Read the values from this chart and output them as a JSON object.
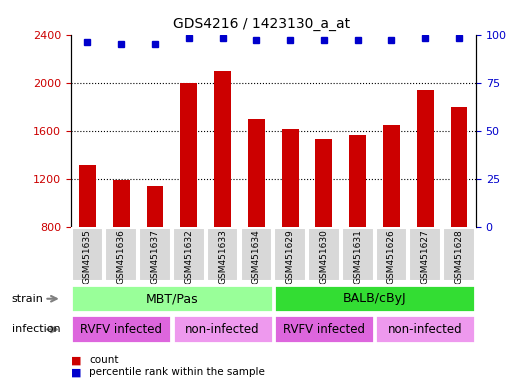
{
  "title": "GDS4216 / 1423130_a_at",
  "samples": [
    "GSM451635",
    "GSM451636",
    "GSM451637",
    "GSM451632",
    "GSM451633",
    "GSM451634",
    "GSM451629",
    "GSM451630",
    "GSM451631",
    "GSM451626",
    "GSM451627",
    "GSM451628"
  ],
  "counts": [
    1310,
    1185,
    1140,
    2000,
    2100,
    1700,
    1610,
    1530,
    1560,
    1650,
    1940,
    1800
  ],
  "percentiles": [
    96,
    95,
    95,
    98,
    98,
    97,
    97,
    97,
    97,
    97,
    98,
    98
  ],
  "ylim_left": [
    800,
    2400
  ],
  "ylim_right": [
    0,
    100
  ],
  "yticks_left": [
    800,
    1200,
    1600,
    2000,
    2400
  ],
  "yticks_right": [
    0,
    25,
    50,
    75,
    100
  ],
  "bar_color": "#cc0000",
  "dot_color": "#0000cc",
  "bar_bottom": 800,
  "strain_groups": [
    {
      "label": "MBT/Pas",
      "start": 0,
      "end": 6,
      "color": "#99ff99"
    },
    {
      "label": "BALB/cByJ",
      "start": 6,
      "end": 12,
      "color": "#33dd33"
    }
  ],
  "infection_groups": [
    {
      "label": "RVFV infected",
      "start": 0,
      "end": 3,
      "color": "#dd66dd"
    },
    {
      "label": "non-infected",
      "start": 3,
      "end": 6,
      "color": "#ee99ee"
    },
    {
      "label": "RVFV infected",
      "start": 6,
      "end": 9,
      "color": "#dd66dd"
    },
    {
      "label": "non-infected",
      "start": 9,
      "end": 12,
      "color": "#ee99ee"
    }
  ],
  "tick_label_color_left": "#cc0000",
  "tick_label_color_right": "#0000cc",
  "legend_items": [
    {
      "color": "#cc0000",
      "label": "count"
    },
    {
      "color": "#0000cc",
      "label": "percentile rank within the sample"
    }
  ]
}
